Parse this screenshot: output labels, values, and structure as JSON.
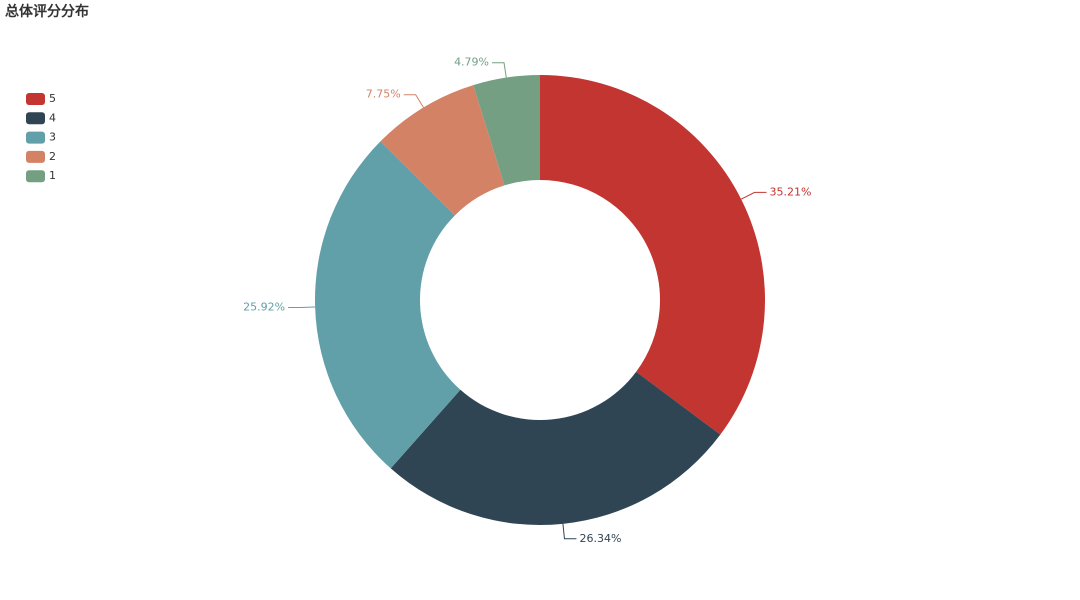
{
  "chart_data": {
    "type": "donut",
    "title": "总体评分分布",
    "categories": [
      "5",
      "4",
      "3",
      "2",
      "1"
    ],
    "values": [
      35.21,
      26.34,
      25.92,
      7.75,
      4.79
    ],
    "value_labels": [
      "35.21%",
      "26.34%",
      "25.92%",
      "7.75%",
      "4.79%"
    ],
    "colors": [
      "#c23531",
      "#2f4554",
      "#61a0a8",
      "#d48265",
      "#749f83"
    ],
    "legend": "top-left"
  }
}
